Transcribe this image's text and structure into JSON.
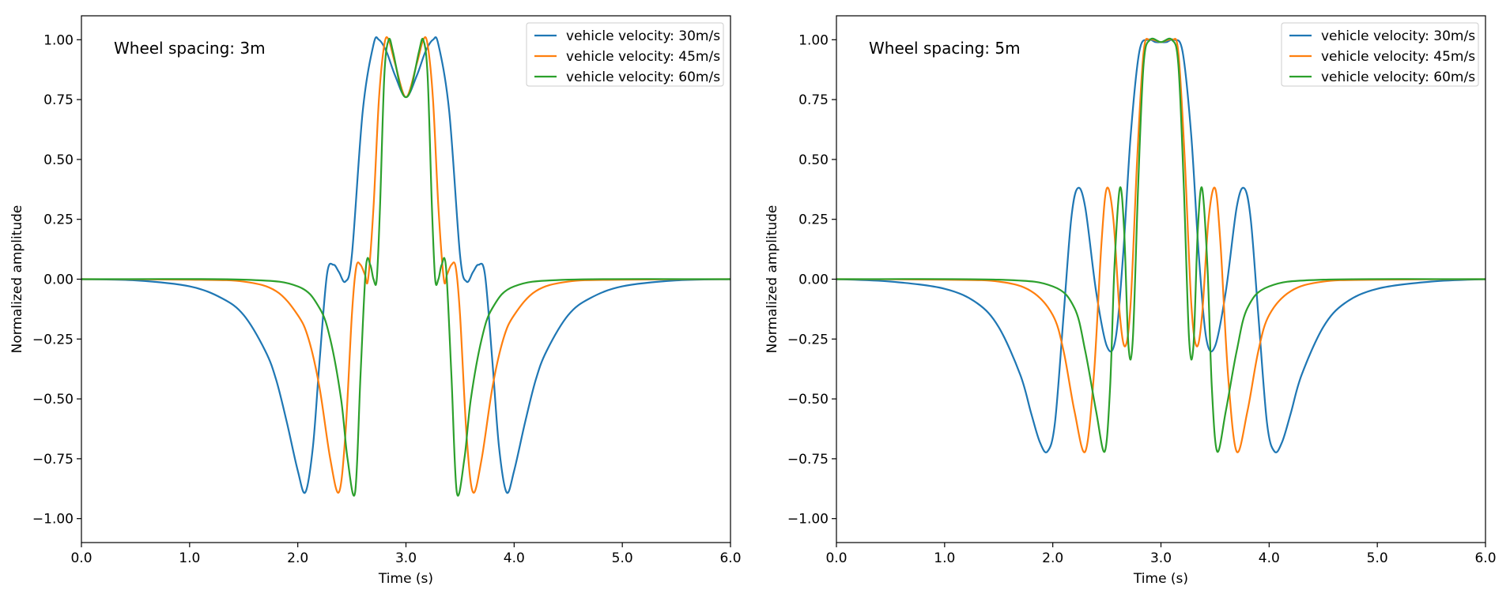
{
  "chart_data": [
    {
      "type": "line",
      "title": "",
      "annotation": "Wheel spacing: 3m",
      "xlabel": "Time (s)",
      "ylabel": "Normalized amplitude",
      "xlim": [
        0,
        6
      ],
      "ylim": [
        -1.1,
        1.1
      ],
      "xticks": [
        0,
        1,
        2,
        3,
        4,
        5,
        6
      ],
      "xtick_labels": [
        "0.0",
        "1.0",
        "2.0",
        "3.0",
        "4.0",
        "5.0",
        "6.0"
      ],
      "yticks": [
        1.0,
        0.75,
        0.5,
        0.25,
        0.0,
        -0.25,
        -0.5,
        -0.75,
        -1.0
      ],
      "ytick_labels": [
        "1.00",
        "0.75",
        "0.50",
        "0.25",
        "0.00",
        "−0.25",
        "−0.50",
        "−0.75",
        "−1.00"
      ],
      "grid": false,
      "legend_position": "top-right",
      "series": [
        {
          "name": "vehicle velocity: 30m/s",
          "color": "#1f77b4",
          "x": [
            0,
            0.5,
            1.0,
            1.3,
            1.5,
            1.7,
            1.8,
            1.9,
            2.0,
            2.07,
            2.14,
            2.2,
            2.27,
            2.33,
            2.38,
            2.44,
            2.5,
            2.6,
            2.7,
            2.75,
            2.82,
            2.9,
            3.0,
            3.1,
            3.18,
            3.25,
            3.3,
            3.4,
            3.5,
            3.56,
            3.62,
            3.67,
            3.73,
            3.8,
            3.86,
            3.93,
            4.0,
            4.1,
            4.2,
            4.3,
            4.5,
            4.7,
            5.0,
            5.5,
            6.0
          ],
          "y": [
            0.0,
            -0.005,
            -0.03,
            -0.08,
            -0.15,
            -0.3,
            -0.42,
            -0.6,
            -0.8,
            -0.89,
            -0.7,
            -0.35,
            0.02,
            0.06,
            0.03,
            -0.01,
            0.1,
            0.7,
            0.98,
            1.0,
            0.95,
            0.85,
            0.76,
            0.85,
            0.95,
            1.0,
            0.98,
            0.7,
            0.1,
            -0.01,
            0.03,
            0.06,
            0.02,
            -0.35,
            -0.7,
            -0.89,
            -0.8,
            -0.6,
            -0.42,
            -0.3,
            -0.15,
            -0.08,
            -0.03,
            -0.005,
            0.0
          ]
        },
        {
          "name": "vehicle velocity: 45m/s",
          "color": "#ff7f0e",
          "x": [
            0,
            1.0,
            1.5,
            1.8,
            2.0,
            2.1,
            2.2,
            2.3,
            2.38,
            2.44,
            2.5,
            2.54,
            2.58,
            2.62,
            2.65,
            2.7,
            2.75,
            2.8,
            2.84,
            2.9,
            3.0,
            3.1,
            3.16,
            3.2,
            3.25,
            3.3,
            3.35,
            3.38,
            3.42,
            3.46,
            3.5,
            3.56,
            3.62,
            3.7,
            3.8,
            3.9,
            4.0,
            4.2,
            4.5,
            5.0,
            6.0
          ],
          "y": [
            0.0,
            -0.002,
            -0.01,
            -0.05,
            -0.15,
            -0.25,
            -0.45,
            -0.75,
            -0.89,
            -0.65,
            -0.15,
            0.05,
            0.06,
            0.02,
            0.0,
            0.3,
            0.75,
            0.98,
            1.0,
            0.9,
            0.76,
            0.9,
            1.0,
            0.98,
            0.75,
            0.3,
            0.0,
            0.02,
            0.06,
            0.05,
            -0.15,
            -0.65,
            -0.89,
            -0.75,
            -0.45,
            -0.25,
            -0.15,
            -0.05,
            -0.01,
            -0.002,
            0.0
          ]
        },
        {
          "name": "vehicle velocity: 60m/s",
          "color": "#2ca02c",
          "x": [
            0,
            1.5,
            2.0,
            2.2,
            2.3,
            2.4,
            2.46,
            2.53,
            2.58,
            2.63,
            2.67,
            2.7,
            2.73,
            2.76,
            2.8,
            2.84,
            2.88,
            2.95,
            3.0,
            3.05,
            3.12,
            3.16,
            3.2,
            3.24,
            3.27,
            3.3,
            3.33,
            3.37,
            3.42,
            3.47,
            3.54,
            3.6,
            3.7,
            3.8,
            4.0,
            4.5,
            6.0
          ],
          "y": [
            0.0,
            -0.002,
            -0.03,
            -0.12,
            -0.25,
            -0.5,
            -0.75,
            -0.89,
            -0.4,
            0.05,
            0.06,
            0.0,
            0.0,
            0.3,
            0.85,
            1.0,
            0.95,
            0.8,
            0.76,
            0.8,
            0.95,
            1.0,
            0.85,
            0.3,
            0.0,
            0.0,
            0.06,
            0.05,
            -0.4,
            -0.89,
            -0.75,
            -0.5,
            -0.25,
            -0.12,
            -0.03,
            -0.002,
            0.0
          ]
        }
      ]
    },
    {
      "type": "line",
      "title": "",
      "annotation": "Wheel spacing: 5m",
      "xlabel": "Time (s)",
      "ylabel": "Normalized amplitude",
      "xlim": [
        0,
        6
      ],
      "ylim": [
        -1.1,
        1.1
      ],
      "xticks": [
        0,
        1,
        2,
        3,
        4,
        5,
        6
      ],
      "xtick_labels": [
        "0.0",
        "1.0",
        "2.0",
        "3.0",
        "4.0",
        "5.0",
        "6.0"
      ],
      "yticks": [
        1.0,
        0.75,
        0.5,
        0.25,
        0.0,
        -0.25,
        -0.5,
        -0.75,
        -1.0
      ],
      "ytick_labels": [
        "1.00",
        "0.75",
        "0.50",
        "0.25",
        "0.00",
        "−0.25",
        "−0.50",
        "−0.75",
        "−1.00"
      ],
      "grid": false,
      "legend_position": "top-right",
      "series": [
        {
          "name": "vehicle velocity: 30m/s",
          "color": "#1f77b4",
          "x": [
            0,
            0.5,
            1.0,
            1.3,
            1.5,
            1.7,
            1.8,
            1.88,
            1.95,
            2.02,
            2.1,
            2.17,
            2.23,
            2.3,
            2.4,
            2.5,
            2.58,
            2.65,
            2.72,
            2.8,
            2.88,
            2.95,
            3.0,
            3.05,
            3.12,
            3.2,
            3.28,
            3.35,
            3.42,
            3.5,
            3.6,
            3.7,
            3.77,
            3.83,
            3.9,
            3.98,
            4.05,
            4.12,
            4.2,
            4.3,
            4.5,
            4.7,
            5.0,
            5.5,
            6.0
          ],
          "y": [
            0.0,
            -0.01,
            -0.04,
            -0.1,
            -0.2,
            -0.4,
            -0.56,
            -0.68,
            -0.72,
            -0.6,
            -0.15,
            0.25,
            0.38,
            0.3,
            -0.05,
            -0.28,
            -0.25,
            0.1,
            0.6,
            0.95,
            1.0,
            0.99,
            0.99,
            0.99,
            1.0,
            0.95,
            0.6,
            0.1,
            -0.25,
            -0.28,
            -0.05,
            0.3,
            0.38,
            0.25,
            -0.15,
            -0.6,
            -0.72,
            -0.68,
            -0.56,
            -0.4,
            -0.2,
            -0.1,
            -0.04,
            -0.01,
            0.0
          ]
        },
        {
          "name": "vehicle velocity: 45m/s",
          "color": "#ff7f0e",
          "x": [
            0,
            1.0,
            1.5,
            1.8,
            2.0,
            2.1,
            2.2,
            2.3,
            2.38,
            2.45,
            2.5,
            2.56,
            2.62,
            2.67,
            2.72,
            2.78,
            2.84,
            2.9,
            3.0,
            3.1,
            3.16,
            3.22,
            3.28,
            3.33,
            3.38,
            3.44,
            3.5,
            3.55,
            3.62,
            3.7,
            3.8,
            3.9,
            4.0,
            4.2,
            4.5,
            5.0,
            6.0
          ],
          "y": [
            0.0,
            -0.002,
            -0.01,
            -0.05,
            -0.15,
            -0.3,
            -0.55,
            -0.72,
            -0.4,
            0.15,
            0.38,
            0.25,
            -0.15,
            -0.28,
            -0.1,
            0.5,
            0.95,
            1.0,
            0.99,
            1.0,
            0.95,
            0.5,
            -0.1,
            -0.28,
            -0.15,
            0.25,
            0.38,
            0.15,
            -0.4,
            -0.72,
            -0.55,
            -0.3,
            -0.15,
            -0.05,
            -0.01,
            -0.002,
            0.0
          ]
        },
        {
          "name": "vehicle velocity: 60m/s",
          "color": "#2ca02c",
          "x": [
            0,
            1.5,
            2.0,
            2.2,
            2.3,
            2.4,
            2.48,
            2.53,
            2.57,
            2.62,
            2.66,
            2.7,
            2.74,
            2.79,
            2.84,
            2.9,
            3.0,
            3.1,
            3.16,
            3.21,
            3.26,
            3.3,
            3.34,
            3.38,
            3.43,
            3.47,
            3.52,
            3.6,
            3.7,
            3.8,
            4.0,
            4.5,
            6.0
          ],
          "y": [
            0.0,
            -0.002,
            -0.03,
            -0.12,
            -0.3,
            -0.55,
            -0.72,
            -0.45,
            0.05,
            0.38,
            0.2,
            -0.28,
            -0.25,
            0.4,
            0.9,
            1.0,
            0.99,
            1.0,
            0.9,
            0.4,
            -0.25,
            -0.28,
            0.2,
            0.38,
            0.05,
            -0.45,
            -0.72,
            -0.55,
            -0.3,
            -0.12,
            -0.03,
            -0.002,
            0.0
          ]
        }
      ]
    }
  ]
}
